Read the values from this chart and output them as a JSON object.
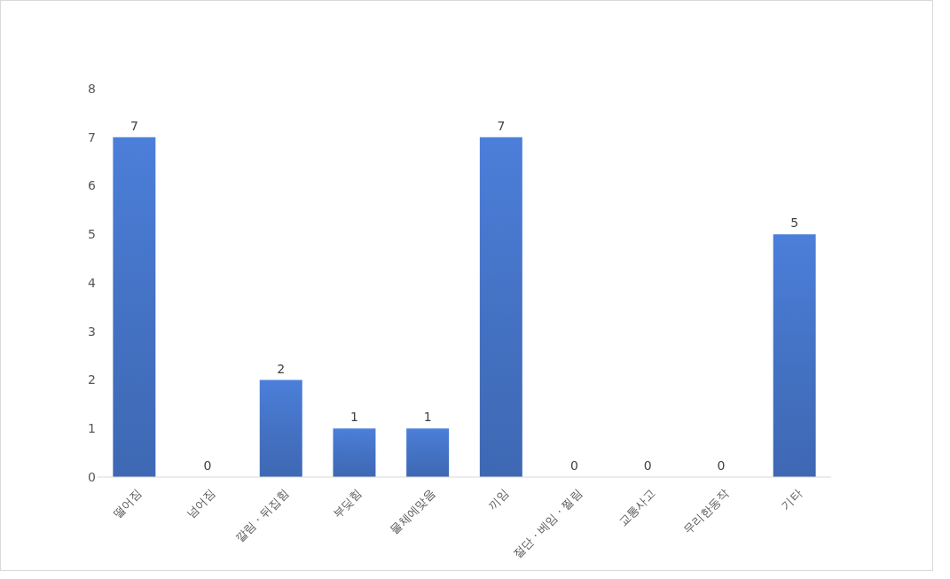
{
  "chart_data": {
    "type": "bar",
    "categories": [
      "떨어짐",
      "넘어짐",
      "깔림 · 뒤집힘",
      "부딪힘",
      "물체에맞음",
      "끼임",
      "절단 · 베임 · 찔림",
      "교통사고",
      "무리한동작",
      "기타"
    ],
    "values": [
      7,
      0,
      2,
      1,
      1,
      7,
      0,
      0,
      0,
      5
    ],
    "color": "#4472c4",
    "ylim": [
      0,
      8
    ],
    "yticks": [
      0,
      1,
      2,
      3,
      4,
      5,
      6,
      7,
      8
    ],
    "data_labels": true
  }
}
